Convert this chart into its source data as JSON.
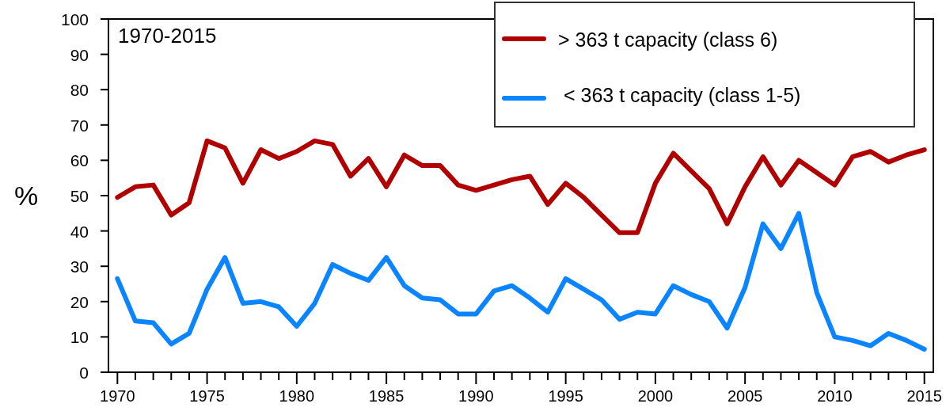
{
  "chart_data": {
    "type": "line",
    "ylabel": "%",
    "annotations": [
      "1970-2015"
    ],
    "x": [
      1970,
      1971,
      1972,
      1973,
      1974,
      1975,
      1976,
      1977,
      1978,
      1979,
      1980,
      1981,
      1982,
      1983,
      1984,
      1985,
      1986,
      1987,
      1988,
      1989,
      1990,
      1991,
      1992,
      1993,
      1994,
      1995,
      1996,
      1997,
      1998,
      1999,
      2000,
      2001,
      2002,
      2003,
      2004,
      2005,
      2006,
      2007,
      2008,
      2009,
      2010,
      2011,
      2012,
      2013,
      2014,
      2015
    ],
    "series": [
      {
        "name": "> 363 t capacity (class 6)",
        "color": "#b00000",
        "values": [
          49.5,
          52.5,
          53,
          44.5,
          48,
          65.5,
          63.5,
          53.5,
          63,
          60.5,
          62.5,
          65.5,
          64.5,
          55.5,
          60.5,
          52.5,
          61.5,
          58.5,
          58.5,
          53,
          51.5,
          53,
          54.5,
          55.5,
          47.5,
          53.5,
          49.5,
          44.5,
          39.5,
          39.5,
          53.5,
          62,
          57,
          52,
          42,
          52.5,
          61,
          53,
          60,
          56.5,
          53,
          61,
          62.5,
          59.5,
          61.5,
          63
        ]
      },
      {
        "name": " < 363 t capacity (class 1-5)",
        "color": "#0a84ff",
        "values": [
          26.5,
          14.5,
          14,
          8,
          11,
          23.5,
          32.5,
          19.5,
          20,
          18.5,
          13,
          19.5,
          30.5,
          28,
          26,
          32.5,
          24.5,
          21,
          20.5,
          16.5,
          16.5,
          23,
          24.5,
          21,
          17,
          26.5,
          23.5,
          20.5,
          15,
          17,
          16.5,
          24.5,
          22,
          20,
          12.5,
          24,
          42,
          35,
          45,
          22.5,
          10,
          9,
          7.5,
          11,
          9,
          6.5
        ]
      }
    ],
    "xlim": [
      1969.5,
      2015.5
    ],
    "xticks": [
      1970,
      {
        "value": 1971,
        "label": null
      },
      {
        "value": 1972,
        "label": null
      },
      {
        "value": 1973,
        "label": null
      },
      {
        "value": 1974,
        "label": null
      },
      1975,
      {
        "value": 1976,
        "label": null
      },
      {
        "value": 1977,
        "label": null
      },
      {
        "value": 1978,
        "label": null
      },
      {
        "value": 1979,
        "label": null
      },
      1980,
      {
        "value": 1981,
        "label": null
      },
      {
        "value": 1982,
        "label": null
      },
      {
        "value": 1983,
        "label": null
      },
      {
        "value": 1984,
        "label": null
      },
      1985,
      {
        "value": 1986,
        "label": null
      },
      {
        "value": 1987,
        "label": null
      },
      {
        "value": 1988,
        "label": null
      },
      {
        "value": 1989,
        "label": null
      },
      1990,
      {
        "value": 1991,
        "label": null
      },
      {
        "value": 1992,
        "label": null
      },
      {
        "value": 1993,
        "label": null
      },
      {
        "value": 1994,
        "label": null
      },
      1995,
      {
        "value": 1996,
        "label": null
      },
      {
        "value": 1997,
        "label": null
      },
      {
        "value": 1998,
        "label": null
      },
      {
        "value": 1999,
        "label": null
      },
      2000,
      {
        "value": 2001,
        "label": null
      },
      {
        "value": 2002,
        "label": null
      },
      {
        "value": 2003,
        "label": null
      },
      {
        "value": 2004,
        "label": null
      },
      2005,
      {
        "value": 2006,
        "label": null
      },
      {
        "value": 2007,
        "label": null
      },
      {
        "value": 2008,
        "label": null
      },
      {
        "value": 2009,
        "label": null
      },
      2010,
      {
        "value": 2011,
        "label": null
      },
      {
        "value": 2012,
        "label": null
      },
      {
        "value": 2013,
        "label": null
      },
      {
        "value": 2014,
        "label": null
      },
      2015
    ],
    "ylim": [
      0,
      100
    ],
    "yticks": [
      0,
      10,
      20,
      30,
      40,
      50,
      60,
      70,
      80,
      90,
      100
    ],
    "grid": false,
    "legend": "top right",
    "marker": "none",
    "line_style": "solid"
  }
}
